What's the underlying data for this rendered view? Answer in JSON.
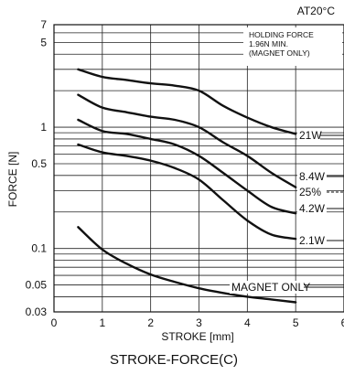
{
  "chart_data": {
    "type": "line",
    "title": "STROKE-FORCE(C)",
    "condition": "AT20°C",
    "xlabel": "STROKE [mm]",
    "ylabel": "FORCE [N]",
    "xlim": [
      0,
      6
    ],
    "ylim": [
      0.03,
      7
    ],
    "y_scale": "log",
    "x_ticks": [
      "0",
      "1",
      "2",
      "3",
      "4",
      "5",
      "6"
    ],
    "y_ticks": [
      {
        "value": 7,
        "label": "7"
      },
      {
        "value": 5,
        "label": "5"
      },
      {
        "value": 1,
        "label": "1"
      },
      {
        "value": 0.5,
        "label": "0.5"
      },
      {
        "value": 0.1,
        "label": "0.1"
      },
      {
        "value": 0.05,
        "label": "0.05"
      },
      {
        "value": 0.03,
        "label": "0.03"
      }
    ],
    "grid": true,
    "annotation": {
      "lines": [
        "HOLDING FORCE",
        "1.96N MIN.",
        "(MAGNET ONLY)"
      ]
    },
    "duty_label": "25%",
    "series": [
      {
        "name": "21W",
        "x": [
          0.5,
          1,
          1.5,
          2,
          2.5,
          3,
          3.5,
          4,
          4.5,
          5
        ],
        "y": [
          3.0,
          2.6,
          2.45,
          2.3,
          2.2,
          2.0,
          1.5,
          1.2,
          1.0,
          0.88
        ]
      },
      {
        "name": "8.4W",
        "x": [
          0.5,
          1,
          1.5,
          2,
          2.5,
          3,
          3.5,
          4,
          4.5,
          5
        ],
        "y": [
          1.85,
          1.45,
          1.33,
          1.22,
          1.15,
          1.0,
          0.75,
          0.58,
          0.42,
          0.32
        ]
      },
      {
        "name": "4.2W",
        "x": [
          0.5,
          1,
          1.5,
          2,
          2.5,
          3,
          3.5,
          4,
          4.5,
          5
        ],
        "y": [
          1.15,
          0.93,
          0.88,
          0.8,
          0.72,
          0.58,
          0.42,
          0.3,
          0.22,
          0.195
        ]
      },
      {
        "name": "2.1W",
        "x": [
          0.5,
          1,
          1.5,
          2,
          2.5,
          3,
          3.5,
          4,
          4.5,
          5
        ],
        "y": [
          0.72,
          0.62,
          0.58,
          0.53,
          0.46,
          0.37,
          0.25,
          0.17,
          0.13,
          0.12
        ]
      },
      {
        "name": "MAGNET ONLY",
        "x": [
          0.5,
          1,
          1.5,
          2,
          2.5,
          3,
          3.5,
          4,
          4.5,
          5
        ],
        "y": [
          0.15,
          0.098,
          0.075,
          0.061,
          0.053,
          0.047,
          0.043,
          0.04,
          0.038,
          0.036
        ]
      }
    ]
  }
}
